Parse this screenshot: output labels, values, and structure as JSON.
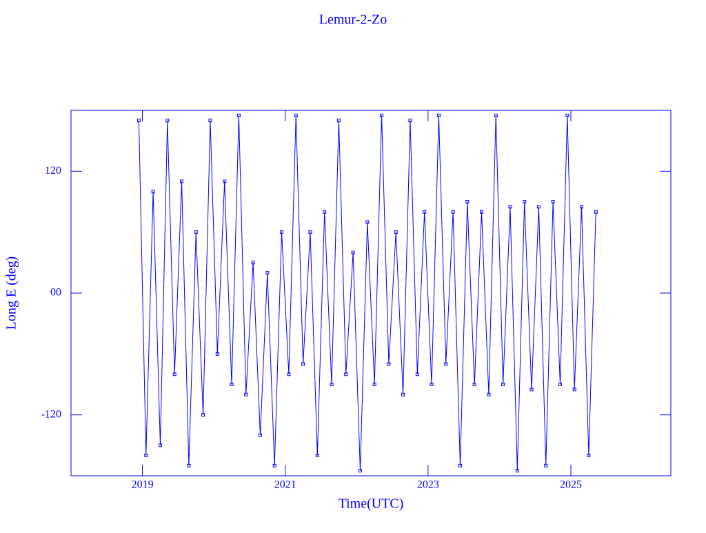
{
  "chart_data": {
    "type": "line",
    "title": "Lemur-2-Zo",
    "x_label": "Time(UTC)",
    "y_label": "Long E (deg)",
    "x": [
      2018.95,
      2019.05,
      2019.15,
      2019.25,
      2019.35,
      2019.45,
      2019.55,
      2019.65,
      2019.75,
      2019.85,
      2019.95,
      2020.05,
      2020.15,
      2020.25,
      2020.35,
      2020.45,
      2020.55,
      2020.65,
      2020.75,
      2020.85,
      2020.95,
      2021.05,
      2021.15,
      2021.25,
      2021.35,
      2021.45,
      2021.55,
      2021.65,
      2021.75,
      2021.85,
      2021.95,
      2022.05,
      2022.15,
      2022.25,
      2022.35,
      2022.45,
      2022.55,
      2022.65,
      2022.75,
      2022.85,
      2022.95,
      2023.05,
      2023.15,
      2023.25,
      2023.35,
      2023.45,
      2023.55,
      2023.65,
      2023.75,
      2023.85,
      2023.95,
      2024.05,
      2024.15,
      2024.25,
      2024.35,
      2024.45,
      2024.55,
      2024.65,
      2024.75,
      2024.85,
      2024.95,
      2025.05,
      2025.15,
      2025.25,
      2025.35
    ],
    "values": [
      170,
      -160,
      100,
      -150,
      170,
      -80,
      110,
      -170,
      60,
      -120,
      170,
      -60,
      110,
      -90,
      175,
      -100,
      30,
      -140,
      20,
      -170,
      60,
      -80,
      175,
      -70,
      60,
      -160,
      80,
      -90,
      170,
      -80,
      40,
      -175,
      70,
      -90,
      175,
      -70,
      60,
      -100,
      170,
      -80,
      80,
      -90,
      175,
      -70,
      80,
      -170,
      90,
      -90,
      80,
      -100,
      175,
      -90,
      85,
      -175,
      90,
      -95,
      85,
      -170,
      90,
      -90,
      175,
      -95,
      85,
      -160,
      80
    ],
    "color": "#0000ff",
    "xlim": [
      2018,
      2026.4
    ],
    "xticks": [
      2019,
      2021,
      2023,
      2025
    ],
    "ylim": [
      -180,
      180
    ],
    "yticks": [
      -120,
      {
        "value": 0,
        "label": "00"
      },
      120
    ]
  }
}
